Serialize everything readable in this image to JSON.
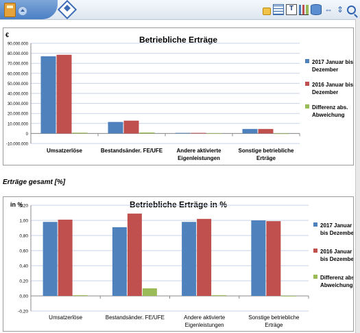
{
  "toolbar": {
    "icons": [
      "book-icon",
      "navigate-up-icon",
      "diamond-icon",
      "lock-icon",
      "table-grid-icon",
      "text-edit-icon",
      "bar-chart-icon",
      "database-icon",
      "left-right-arrows-icon",
      "up-down-arrows-icon",
      "search-icon"
    ],
    "text_icon_glyph": "T",
    "arrows_lr_glyph": "⇔",
    "arrows_ud_glyph": "⇕"
  },
  "section": {
    "title": "Erträge gesamt [%]"
  },
  "colors": {
    "series1": "#4f81bd",
    "series2": "#c0504d",
    "series3": "#9bbb59",
    "grid": "#c7d3e4"
  },
  "chart_data": [
    {
      "type": "bar",
      "title": "Betriebliche Erträge",
      "ylabel": "€",
      "categories": [
        "Umsatzerlöse",
        "Bestandsänder. FE/UFE",
        "Andere aktivierte Eigenleistungen",
        "Sonstige betriebliche Erträge"
      ],
      "category_lines": [
        [
          "Umsatzerlöse"
        ],
        [
          "Bestandsänder. FE/UFE"
        ],
        [
          "Andere aktivierte",
          "Eigenleistungen"
        ],
        [
          "Sonstige betriebliche",
          "Erträge"
        ]
      ],
      "ylim": [
        -10000000,
        90000000
      ],
      "yticks": [
        -10000000,
        0,
        10000000,
        20000000,
        30000000,
        40000000,
        50000000,
        60000000,
        70000000,
        80000000,
        90000000
      ],
      "ytick_labels": [
        "-10.000.000",
        "0",
        "10.000.000",
        "20.000.000",
        "30.000.000",
        "40.000.000",
        "50.000.000",
        "60.000.000",
        "70.000.000",
        "80.000.000",
        "90.000.000"
      ],
      "grid": true,
      "legend_position": "right",
      "series": [
        {
          "name": "2017 Januar bis Dezember",
          "legend_lines": [
            "2017 Januar bis",
            "Dezember"
          ],
          "values": [
            77000000,
            11500000,
            600000,
            4500000
          ]
        },
        {
          "name": "2016 Januar bis Dezember",
          "legend_lines": [
            "2016 Januar bis",
            "Dezember"
          ],
          "values": [
            78500000,
            12800000,
            600000,
            4500000
          ]
        },
        {
          "name": "Differenz abs. Abweichung",
          "legend_lines": [
            "Differenz abs.",
            "Abweichung"
          ],
          "values": [
            800000,
            1000000,
            100000,
            0
          ]
        }
      ]
    },
    {
      "type": "bar",
      "title": "Betriebliche Erträge in %",
      "ylabel": "in %",
      "categories": [
        "Umsatzerlöse",
        "Bestandsänder. FE/UFE",
        "Andere aktivierte Eigenleistungen",
        "Sonstige betriebliche Erträge"
      ],
      "category_lines": [
        [
          "Umsatzerlöse"
        ],
        [
          "Bestandsänder. FE/UFE"
        ],
        [
          "Andere aktivierte",
          "Eigenleistungen"
        ],
        [
          "Sonstige betriebliche",
          "Erträge"
        ]
      ],
      "ylim": [
        -0.2,
        1.2
      ],
      "yticks": [
        -0.2,
        0,
        0.2,
        0.4,
        0.6,
        0.8,
        1.0,
        1.2
      ],
      "ytick_labels": [
        "-0,20",
        "0,00",
        "0,20",
        "0,40",
        "0,60",
        "0,80",
        "1,00",
        "1,20"
      ],
      "grid": true,
      "legend_position": "right",
      "series": [
        {
          "name": "2017 Januar bis Dezember",
          "legend_lines": [
            "2017 Januar",
            "bis Dezember"
          ],
          "values": [
            0.98,
            0.91,
            0.98,
            1.0
          ]
        },
        {
          "name": "2016 Januar bis Dezember",
          "legend_lines": [
            "2016 Januar",
            "bis Dezember"
          ],
          "values": [
            1.01,
            1.09,
            1.02,
            0.99
          ]
        },
        {
          "name": "Differenz abs. Abweichung",
          "legend_lines": [
            "Differenz abs.",
            "Abweichung"
          ],
          "values": [
            0.01,
            0.1,
            0.01,
            0.0
          ]
        }
      ]
    }
  ]
}
